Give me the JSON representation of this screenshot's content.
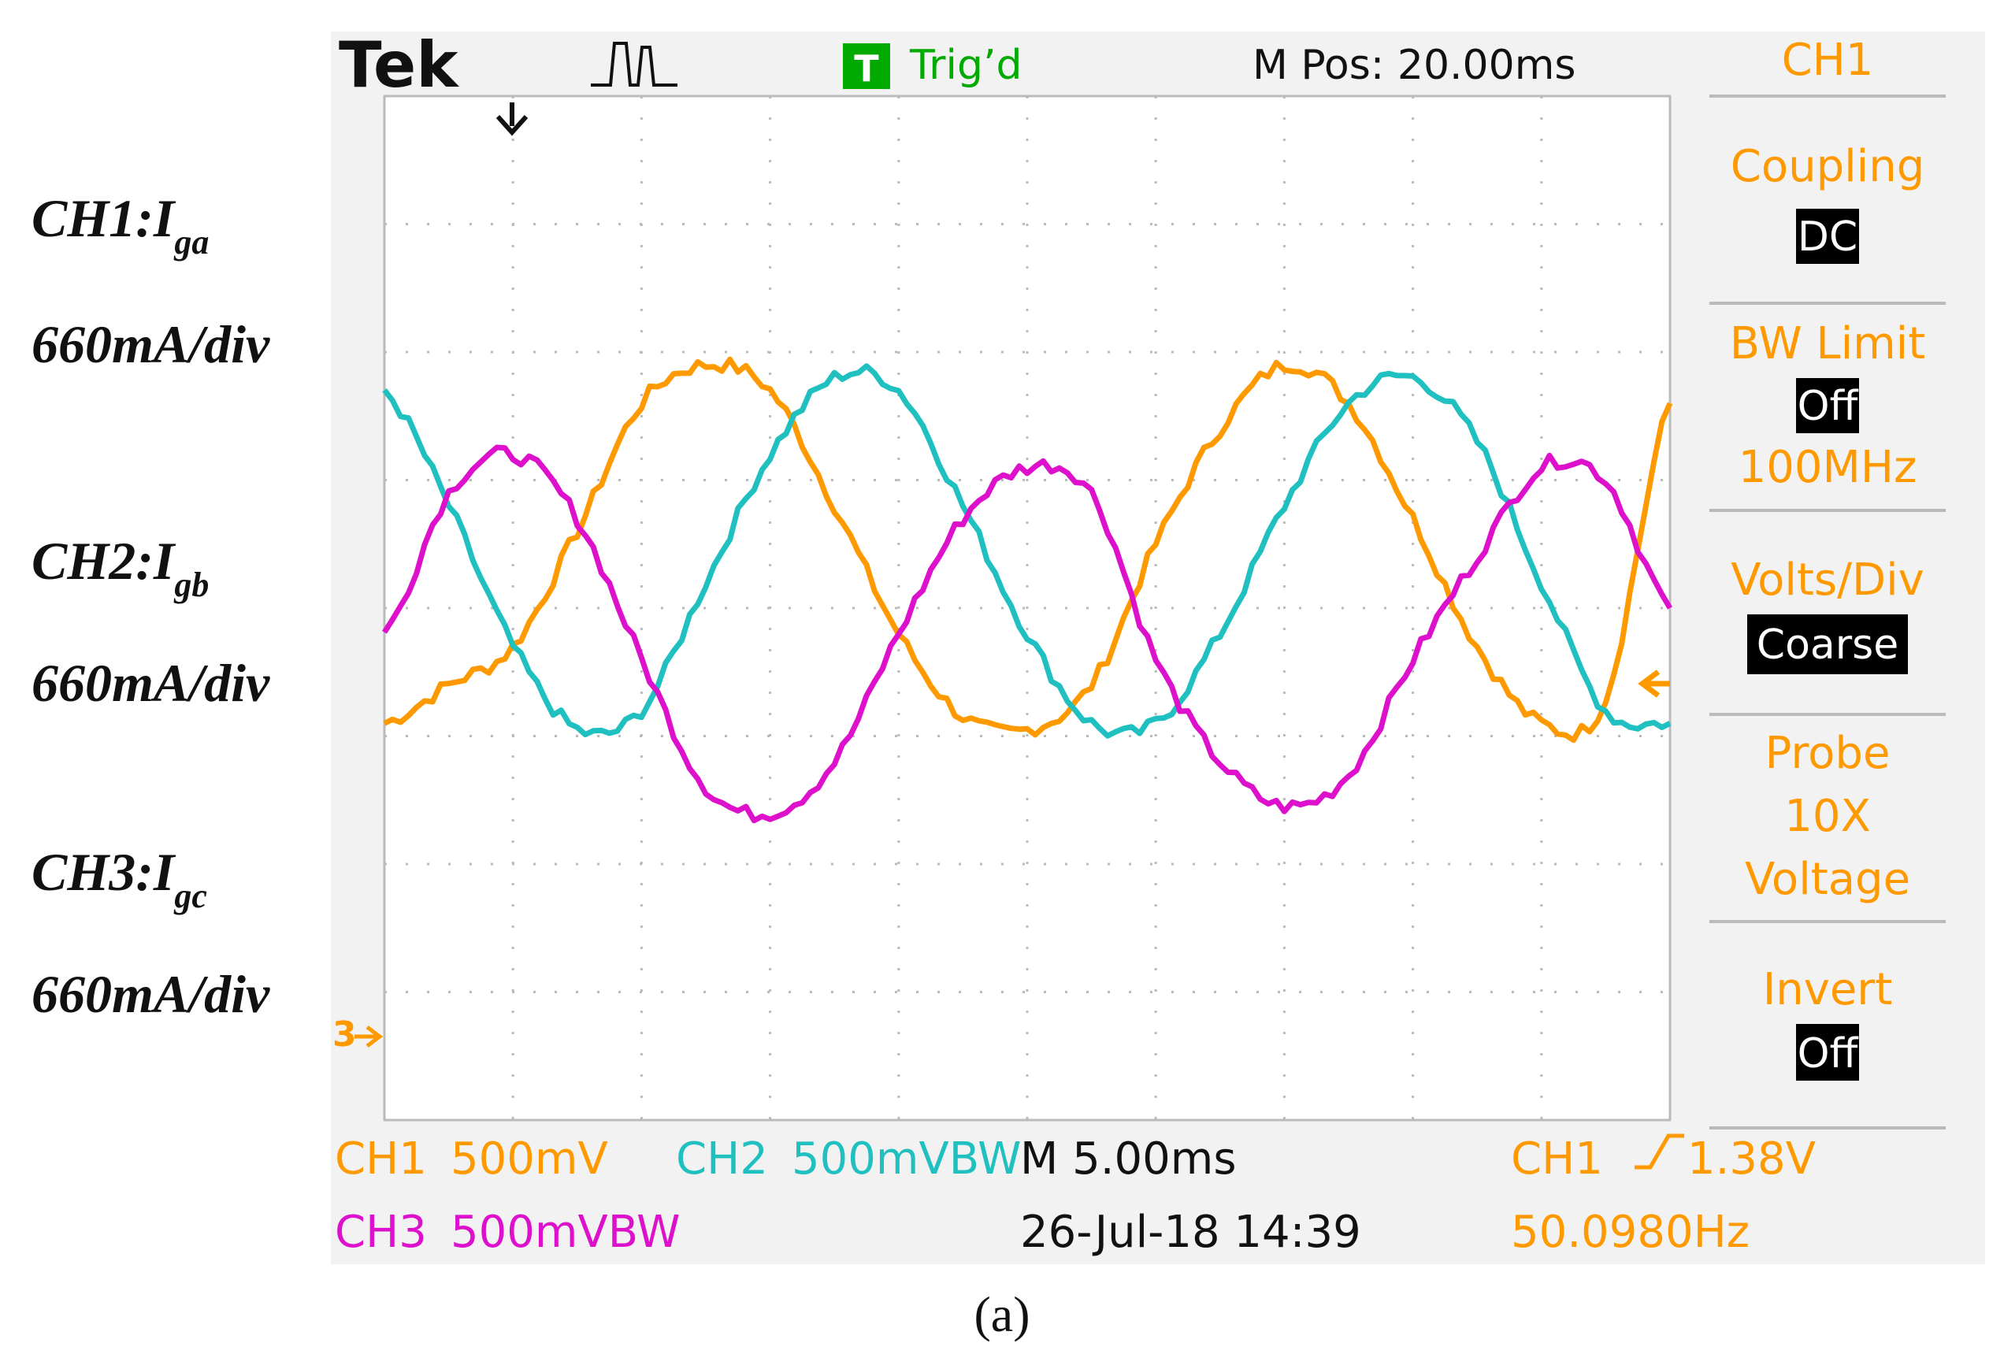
{
  "header": {
    "brand": "Tek",
    "trigger_badge": "T",
    "trigger_status": "Trig’d",
    "position": "M Pos: 20.00ms"
  },
  "annotations": [
    {
      "main": "CH1:I",
      "sub": "ga",
      "scale": "660mA/div"
    },
    {
      "main": "CH2:I",
      "sub": "gb",
      "scale": "660mA/div"
    },
    {
      "main": "CH3:I",
      "sub": "gc",
      "scale": "660mA/div"
    }
  ],
  "menu": {
    "title": "CH1",
    "coupling_label": "Coupling",
    "coupling_value": "DC",
    "bw_label": "BW Limit",
    "bw_value": "Off",
    "bw_freq": "100MHz",
    "volts_label": "Volts/Div",
    "volts_value": "Coarse",
    "probe_label": "Probe",
    "probe_ratio": "10X",
    "probe_type": "Voltage",
    "invert_label": "Invert",
    "invert_value": "Off"
  },
  "bottom": {
    "ch1_name": "CH1",
    "ch1_scale": "500mV",
    "ch2_name": "CH2",
    "ch2_scale": "500mVBW",
    "timebase": "M 5.00ms",
    "trig_source": "CH1",
    "trig_level": "1.38V",
    "ch3_name": "CH3",
    "ch3_scale": "500mVBW",
    "date": "26-Jul-18 14:39",
    "frequency": "50.0980Hz"
  },
  "caption": "(a)",
  "colors": {
    "ch1": "#ff9900",
    "ch2": "#20c0c0",
    "ch3": "#dd10cc",
    "grid": "#bbbbbb",
    "trigger_green": "#00aa00"
  },
  "chart_data": {
    "type": "line",
    "x_unit": "ms",
    "xlim": [
      0,
      50
    ],
    "ylim": [
      -4,
      4
    ],
    "x_divisions": 10,
    "y_divisions": 8,
    "x": [
      0,
      2.5,
      5,
      7.5,
      10,
      12.5,
      15,
      17.5,
      20,
      22.5,
      25,
      27.5,
      30,
      32.5,
      35,
      37.5,
      40,
      42.5,
      45,
      47.5,
      50
    ],
    "series": [
      {
        "name": "CH1",
        "color": "#ff9900",
        "values": [
          -0.9,
          -0.6,
          -0.3,
          0.6,
          1.6,
          1.9,
          1.7,
          0.8,
          -0.2,
          -0.85,
          -0.95,
          -0.6,
          0.5,
          1.4,
          1.9,
          1.6,
          0.7,
          -0.3,
          -0.9,
          -0.7,
          1.6
        ]
      },
      {
        "name": "CH2",
        "color": "#20c0c0",
        "values": [
          1.7,
          0.8,
          -0.3,
          -0.95,
          -0.8,
          0.2,
          1.2,
          1.8,
          1.7,
          0.8,
          -0.2,
          -0.9,
          -0.9,
          -0.2,
          0.8,
          1.6,
          1.8,
          1.3,
          0.2,
          -0.8,
          -0.9
        ]
      },
      {
        "name": "CH3",
        "color": "#dd10cc",
        "values": [
          -0.2,
          0.9,
          1.2,
          0.7,
          -0.4,
          -1.4,
          -1.6,
          -1.2,
          -0.2,
          0.7,
          1.1,
          0.9,
          -0.4,
          -1.2,
          -1.55,
          -1.3,
          -0.4,
          0.4,
          1.1,
          1.0,
          0.0
        ]
      }
    ]
  }
}
